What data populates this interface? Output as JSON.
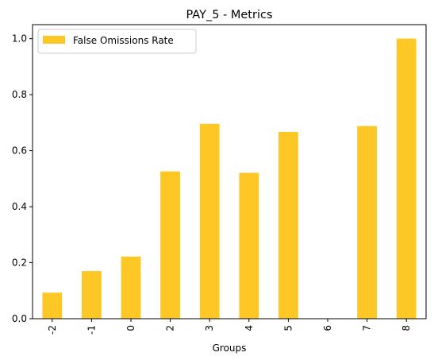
{
  "chart_data": {
    "type": "bar",
    "title": "PAY_5 - Metrics",
    "xlabel": "Groups",
    "ylabel": "",
    "categories": [
      "-2",
      "-1",
      "0",
      "2",
      "3",
      "4",
      "5",
      "6",
      "7",
      "8"
    ],
    "series": [
      {
        "name": "False Omissions Rate",
        "values": [
          0.093,
          0.17,
          0.222,
          0.526,
          0.696,
          0.521,
          0.667,
          0.0,
          0.688,
          1.0
        ]
      }
    ],
    "ylim": [
      0,
      1.05
    ],
    "yticks": [
      "0.0",
      "0.2",
      "0.4",
      "0.6",
      "0.8",
      "1.0"
    ],
    "ytick_values": [
      0.0,
      0.2,
      0.4,
      0.6,
      0.8,
      1.0
    ],
    "grid": false,
    "legend_position": "top-left",
    "colors": {
      "bar": "#fdc726"
    }
  }
}
